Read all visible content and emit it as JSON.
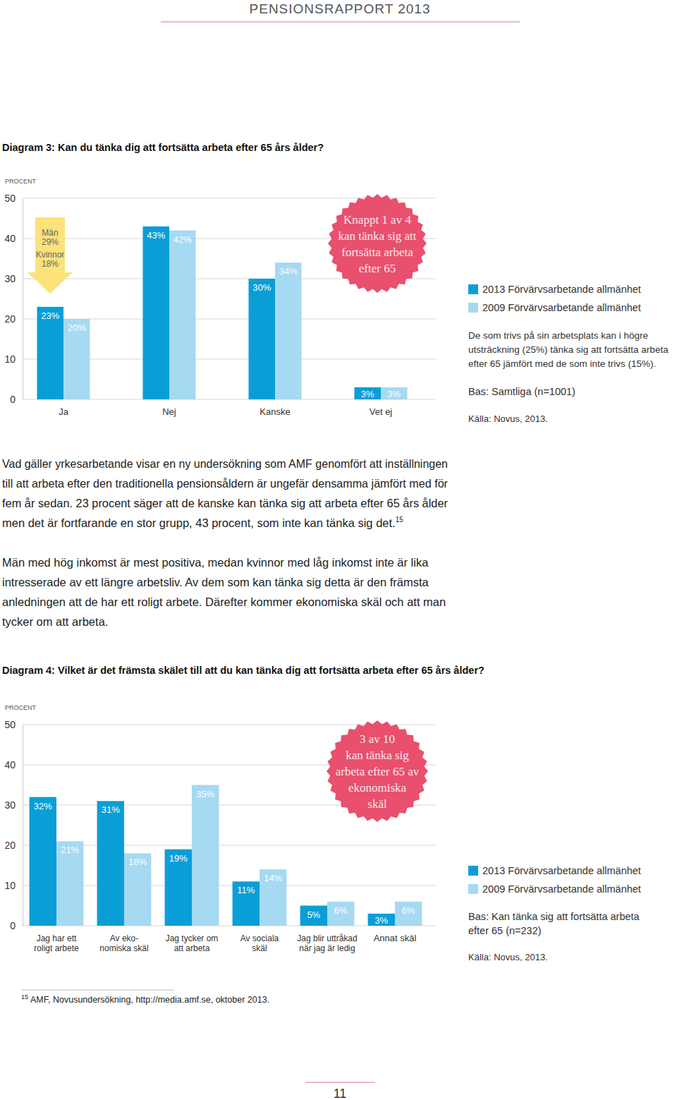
{
  "header": {
    "title": "PENSIONSRAPPORT 2013"
  },
  "chart_data": [
    {
      "type": "bar",
      "title": "Diagram 3: Kan du tänka dig att fortsätta arbeta efter 65 års ålder?",
      "ylabel": "PROCENT",
      "categories": [
        "Ja",
        "Nej",
        "Kanske",
        "Vet ej"
      ],
      "series": [
        {
          "name": "2013 Förvärvsarbetande allmänhet",
          "color": "#0a9ed7",
          "values": [
            23,
            43,
            30,
            3
          ],
          "value_labels": [
            "23%",
            "43%",
            "30%",
            "3%"
          ]
        },
        {
          "name": "2009 Förvärvsarbetande allmänhet",
          "color": "#a6d9f2",
          "values": [
            20,
            42,
            34,
            3
          ],
          "value_labels": [
            "20%",
            "42%",
            "34%",
            "3%"
          ]
        }
      ],
      "ylim": [
        0,
        50
      ],
      "yticks": [
        0,
        10,
        20,
        30,
        40,
        50
      ],
      "grid": true,
      "data_labels": true,
      "legend": "right",
      "arrow_annotation": [
        "Män",
        "29%",
        "Kvinnor",
        "18%"
      ],
      "callout": [
        "Knappt 1 av 4",
        "kan tänka sig att",
        "fortsätta arbeta",
        "efter 65"
      ],
      "note": [
        "De som trivs på sin arbetsplats kan i högre",
        "utsträckning (25%) tänka sig att fortsätta arbeta",
        "efter 65 jämfört med de som inte trivs (15%)."
      ],
      "base": [
        "Bas: Samtliga (n=1001)"
      ],
      "source": "Källa: Novus, 2013."
    },
    {
      "type": "bar",
      "title": "Diagram 4: Vilket är det främsta skälet till att du kan tänka dig att fortsätta arbeta efter 65 års ålder?",
      "ylabel": "PROCENT",
      "categories": [
        "Jag har ett\nroligt arbete",
        "Av eko-\nnomiska skäl",
        "Jag tycker om\natt arbeta",
        "Av sociala\nskäl",
        "Jag blir uttråkad\nnär jag är ledig",
        "Annat skäl"
      ],
      "series": [
        {
          "name": "2013 Förvärvsarbetande allmänhet",
          "color": "#0a9ed7",
          "values": [
            32,
            31,
            19,
            11,
            5,
            3
          ],
          "value_labels": [
            "32%",
            "31%",
            "19%",
            "11%",
            "5%",
            "3%"
          ]
        },
        {
          "name": "2009 Förvärvsarbetande allmänhet",
          "color": "#a6d9f2",
          "values": [
            21,
            18,
            35,
            14,
            6,
            6
          ],
          "value_labels": [
            "21%",
            "18%",
            "35%",
            "14%",
            "6%",
            "6%"
          ]
        }
      ],
      "ylim": [
        0,
        50
      ],
      "yticks": [
        0,
        10,
        20,
        30,
        40,
        50
      ],
      "grid": true,
      "data_labels": true,
      "legend": "right",
      "callout": [
        "3 av 10",
        "kan tänka sig",
        "arbeta efter 65 av",
        "ekonomiska",
        "skäl"
      ],
      "base": [
        "Bas: Kan tänka sig att fortsätta arbeta",
        "efter 65 (n=232)"
      ],
      "source": "Källa: Novus, 2013."
    }
  ],
  "paragraphs": [
    {
      "lines": [
        "Vad gäller yrkesarbetande visar en ny undersökning som AMF genomfört att inställningen",
        "till att arbeta efter den traditionella pensionsåldern är ungefär densamma jämfört med för",
        "fem år sedan. 23 procent säger att de kanske kan tänka sig att arbeta efter 65 års ålder",
        "men det är fortfarande en stor grupp, 43 procent, som inte kan tänka sig det."
      ],
      "footnote_ref": "15"
    },
    {
      "lines": [
        "Män med hög inkomst är mest positiva, medan kvinnor med låg inkomst inte är lika",
        "intresserade av ett längre arbetsliv. Av dem som kan tänka sig detta är den främsta",
        "anledningen att de har ett roligt arbete. Därefter kommer ekonomiska skäl och att man",
        "tycker om att arbeta."
      ]
    }
  ],
  "footnote": {
    "ref": "15",
    "text": "AMF, Novusundersökning, http://media.amf.se, oktober 2013."
  },
  "page_number": "11"
}
